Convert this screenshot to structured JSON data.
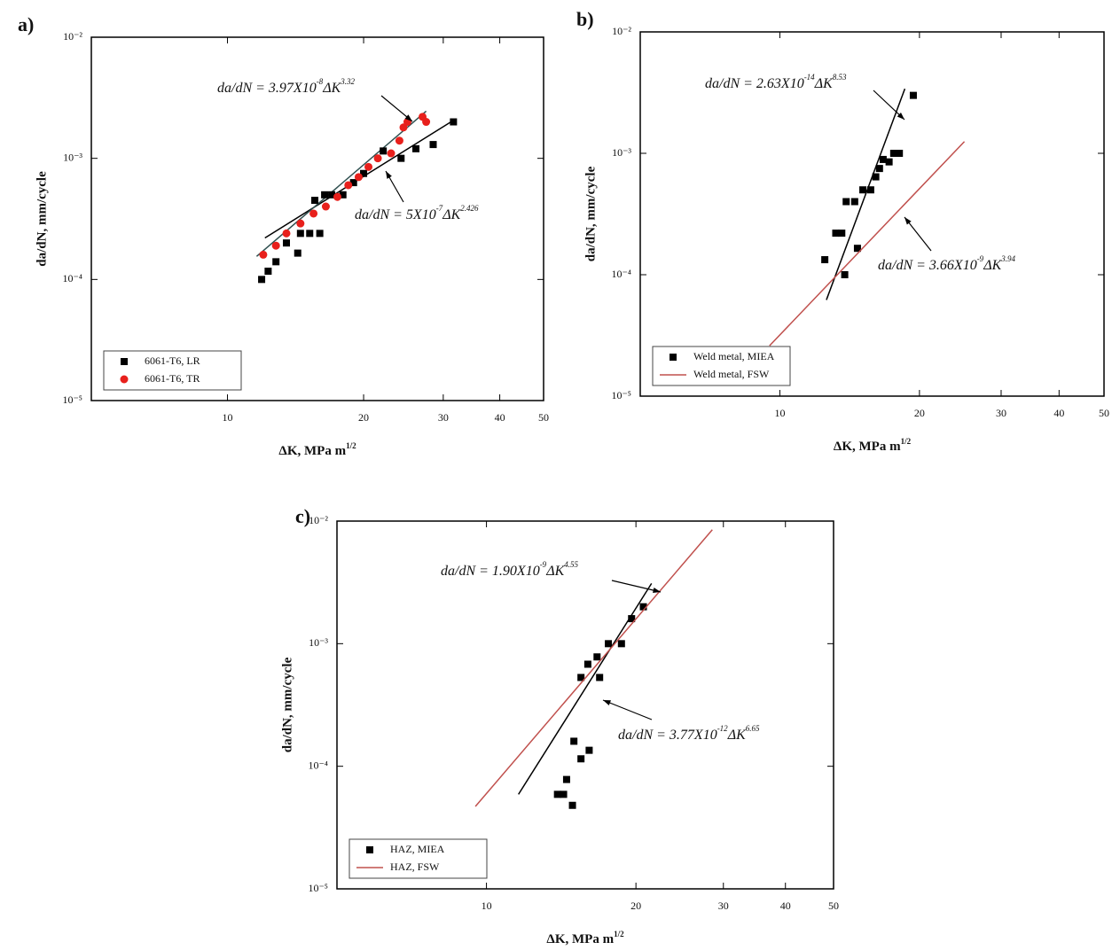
{
  "chart_data": [
    {
      "type": "scatter",
      "panel": "a)",
      "xlabel": "ΔK, MPa m",
      "xlabel_sup": "1/2",
      "ylabel": "da/dN, mm/cycle",
      "xscale": "log",
      "yscale": "log",
      "xlim": [
        5,
        50
      ],
      "ylim": [
        1e-05,
        0.01
      ],
      "xticks": [
        10,
        20,
        30,
        40,
        50
      ],
      "yticks": [
        {
          "value": 1e-05,
          "label": "10⁻⁵"
        },
        {
          "value": 0.0001,
          "label": "10⁻⁴"
        },
        {
          "value": 0.001,
          "label": "10⁻³"
        },
        {
          "value": 0.01,
          "label": "10⁻²"
        }
      ],
      "legend": "lower left",
      "series": [
        {
          "name": "6061-T6, LR",
          "color": "#000000",
          "marker": "square",
          "x": [
            11.9,
            12.3,
            12.8,
            13.5,
            14.3,
            14.5,
            15.2,
            15.6,
            16,
            16.4,
            17,
            18,
            19,
            20,
            22.1,
            24.2,
            26.1,
            28.5,
            31.6
          ],
          "values": [
            0.0001,
            0.000117,
            0.00014,
            0.0002,
            0.000165,
            0.00024,
            0.00024,
            0.00045,
            0.00024,
            0.0005,
            0.0005,
            0.0005,
            0.00063,
            0.00075,
            0.00115,
            0.001,
            0.0012,
            0.0013,
            0.002
          ]
        },
        {
          "name": "6061-T6, TR",
          "color": "#e8201c",
          "marker": "circle",
          "x": [
            12,
            12.8,
            13.5,
            14.5,
            15.5,
            16.5,
            17.5,
            18.5,
            19.5,
            20.5,
            21.5,
            23,
            24,
            24.5,
            25,
            27,
            27.5
          ],
          "values": [
            0.00016,
            0.00019,
            0.00024,
            0.00029,
            0.00035,
            0.0004,
            0.00048,
            0.0006,
            0.0007,
            0.00085,
            0.001,
            0.0011,
            0.0014,
            0.0018,
            0.002,
            0.0022,
            0.002
          ]
        }
      ],
      "fit_lines": [
        {
          "color": "#000000",
          "x": [
            12.1,
            31.6
          ],
          "values": [
            0.00022,
            0.00206
          ]
        },
        {
          "color": "#2f4f4f",
          "x": [
            11.6,
            27.5
          ],
          "values": [
            0.000155,
            0.00245
          ]
        }
      ],
      "annotations": [
        {
          "parts": [
            "da/dN = 3.97X10",
            "-8",
            "ΔK",
            "3.32"
          ]
        },
        {
          "parts": [
            "da/dN = 5X10",
            "-7",
            "ΔK",
            "2.426"
          ]
        }
      ]
    },
    {
      "type": "scatter",
      "panel": "b)",
      "xlabel": "ΔK, MPa m",
      "xlabel_sup": "1/2",
      "ylabel": "da/dN, mm/cycle",
      "xscale": "log",
      "yscale": "log",
      "xlim": [
        5,
        50
      ],
      "ylim": [
        1e-05,
        0.01
      ],
      "xticks": [
        10,
        20,
        30,
        40,
        50
      ],
      "yticks": [
        {
          "value": 1e-05,
          "label": "10⁻⁵"
        },
        {
          "value": 0.0001,
          "label": "10⁻⁴"
        },
        {
          "value": 0.001,
          "label": "10⁻³"
        },
        {
          "value": 0.01,
          "label": "10⁻²"
        }
      ],
      "legend": "lower left",
      "series": [
        {
          "name": "Weld metal, MIEA",
          "color": "#000000",
          "marker": "square",
          "x": [
            12.5,
            13.2,
            13.6,
            13.8,
            13.9,
            14.5,
            14.7,
            15.1,
            15.7,
            16.1,
            16.4,
            16.7,
            17.2,
            17.6,
            18.1,
            19.4
          ],
          "values": [
            0.000133,
            0.00022,
            0.00022,
            0.0001,
            0.0004,
            0.0004,
            0.000165,
            0.0005,
            0.0005,
            0.00064,
            0.00075,
            0.00089,
            0.00085,
            0.001,
            0.001,
            0.003
          ]
        },
        {
          "name": "Weld metal, FSW",
          "color": "#c0504d",
          "marker": "line",
          "x": [
            9.5,
            25
          ],
          "values": [
            2.6e-05,
            0.00125
          ]
        }
      ],
      "fit_lines": [
        {
          "color": "#000000",
          "x": [
            12.6,
            18.6
          ],
          "values": [
            6.2e-05,
            0.0034
          ]
        }
      ],
      "annotations": [
        {
          "parts": [
            "da/dN = 2.63X10",
            "-14",
            "ΔK",
            "8.53"
          ]
        },
        {
          "parts": [
            "da/dN = 3.66X10",
            "-9",
            "ΔK",
            "3.94"
          ]
        }
      ]
    },
    {
      "type": "scatter",
      "panel": "c)",
      "xlabel": "ΔK, MPa m",
      "xlabel_sup": "1/2",
      "ylabel": "da/dN, mm/cycle",
      "xscale": "log",
      "yscale": "log",
      "xlim": [
        5,
        50
      ],
      "ylim": [
        1e-05,
        0.01
      ],
      "xticks": [
        10,
        20,
        30,
        40,
        50
      ],
      "yticks": [
        {
          "value": 1e-05,
          "label": "10⁻⁵"
        },
        {
          "value": 0.0001,
          "label": "10⁻⁴"
        },
        {
          "value": 0.001,
          "label": "10⁻³"
        },
        {
          "value": 0.01,
          "label": "10⁻²"
        }
      ],
      "legend": "lower left",
      "series": [
        {
          "name": "HAZ, MIEA",
          "color": "#000000",
          "marker": "square",
          "x": [
            13.9,
            14.3,
            14.5,
            14.9,
            15,
            15.5,
            16.1,
            15.5,
            16,
            16.7,
            16.9,
            17.6,
            18.7,
            19.6,
            20.7
          ],
          "values": [
            5.9e-05,
            5.9e-05,
            7.8e-05,
            4.8e-05,
            0.00016,
            0.000115,
            0.000135,
            0.00053,
            0.00068,
            0.00078,
            0.00053,
            0.001,
            0.001,
            0.0016,
            0.002
          ]
        },
        {
          "name": "HAZ, FSW",
          "color": "#c0504d",
          "marker": "line",
          "x": [
            9.5,
            28.5
          ],
          "values": [
            4.7e-05,
            0.0085
          ]
        }
      ],
      "fit_lines": [
        {
          "color": "#000000",
          "x": [
            11.6,
            21.5
          ],
          "values": [
            5.9e-05,
            0.0031
          ]
        }
      ],
      "annotations": [
        {
          "parts": [
            "da/dN = 1.90X10",
            "-9",
            "ΔK",
            "4.55"
          ]
        },
        {
          "parts": [
            "da/dN = 3.77X10",
            "-12",
            "ΔK",
            "6.65"
          ]
        }
      ]
    }
  ]
}
